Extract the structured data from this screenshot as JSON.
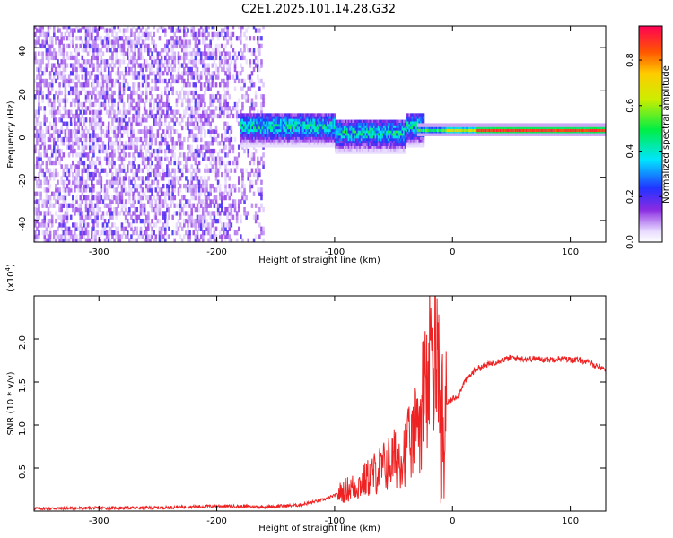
{
  "title": "C2E1.2025.101.14.28.G32",
  "chart_data": [
    {
      "type": "heatmap",
      "name": "spectrogram",
      "xlabel": "Height of straight line (km)",
      "ylabel": "Frequency (Hz)",
      "xlim": [
        -355,
        130
      ],
      "ylim": [
        -50,
        50
      ],
      "xticks": [
        -300,
        -200,
        -100,
        0,
        100
      ],
      "yticks": [
        -40,
        -20,
        0,
        20,
        40
      ],
      "xtick_labels": [
        "-300",
        "-200",
        "-100",
        "0",
        "100"
      ],
      "ytick_labels": [
        "-40",
        "-20",
        "0",
        "20",
        "40"
      ],
      "description_regions": [
        {
          "x_range": [
            -355,
            -160
          ],
          "freq_range": [
            -50,
            50
          ],
          "amplitude": 0.1
        },
        {
          "x_range": [
            -180,
            -30
          ],
          "freq_range": [
            -5,
            10
          ],
          "amplitude": 0.3
        },
        {
          "x_range": [
            -30,
            130
          ],
          "freq_range": [
            0,
            3
          ],
          "amplitude": 0.9
        }
      ],
      "colorbar": {
        "label": "Normalized spectral amplitude",
        "range": [
          0,
          0.95
        ],
        "ticks": [
          0,
          0.2,
          0.4,
          0.6,
          0.8
        ],
        "tick_labels": [
          "0.0",
          "0.2",
          "0.4",
          "0.6",
          "0.8"
        ]
      }
    },
    {
      "type": "line",
      "name": "snr",
      "xlabel": "Height of straight line (km)",
      "ylabel": "SNR (10 * v/v)",
      "scale_label": "(x10",
      "scale_exponent": "4",
      "scale_close": ")",
      "xlim": [
        -355,
        130
      ],
      "ylim": [
        0,
        25000
      ],
      "xticks": [
        -300,
        -200,
        -100,
        0,
        100
      ],
      "yticks": [
        5000,
        10000,
        15000,
        20000
      ],
      "xtick_labels": [
        "-300",
        "-200",
        "-100",
        "0",
        "100"
      ],
      "ytick_labels": [
        "0.5",
        "1.0",
        "1.5",
        "2.0"
      ],
      "color": "#ee2222",
      "series": [
        {
          "name": "SNR",
          "x": [
            -355,
            -300,
            -250,
            -200,
            -160,
            -130,
            -110,
            -100,
            -90,
            -80,
            -70,
            -60,
            -50,
            -40,
            -35,
            -30,
            -25,
            -20,
            -17,
            -15,
            -12,
            -10,
            -5,
            0,
            5,
            10,
            20,
            30,
            40,
            50,
            60,
            70,
            80,
            90,
            100,
            110,
            120,
            130
          ],
          "y": [
            300,
            350,
            400,
            600,
            500,
            700,
            1300,
            1800,
            2500,
            3000,
            4000,
            5000,
            6000,
            7000,
            8000,
            10000,
            12000,
            15000,
            24000,
            20000,
            14000,
            12000,
            12500,
            13000,
            13500,
            15000,
            16500,
            17000,
            17500,
            17800,
            17700,
            17700,
            17600,
            17700,
            17600,
            17500,
            17000,
            16500
          ]
        }
      ]
    }
  ]
}
